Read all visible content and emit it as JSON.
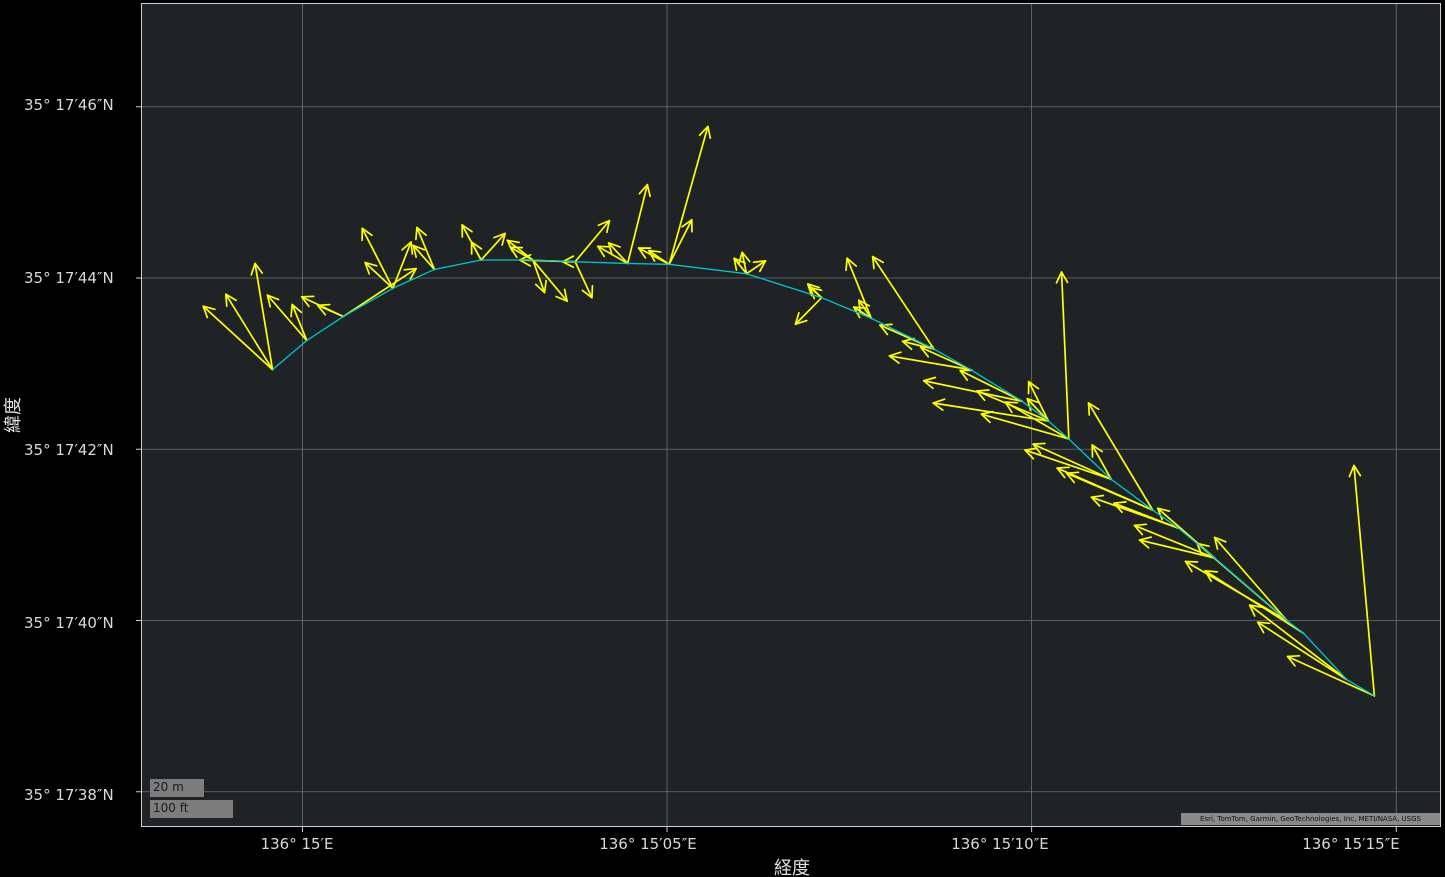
{
  "axes": {
    "xlabel": "経度",
    "ylabel": "緯度",
    "x_ticks": [
      "136° 15′E",
      "136° 15′05″E",
      "136° 15′10″E",
      "136° 15′15″E"
    ],
    "y_ticks": [
      "35° 17′46″N",
      "35° 17′44″N",
      "35° 17′42″N",
      "35° 17′40″N",
      "35° 17′38″N"
    ]
  },
  "scale_bar": {
    "metric": "20 m",
    "imperial": "100 ft"
  },
  "attribution": "Esri, TomTom, Garmin, GeoTechnologies, Inc, METI/NASA, USGS",
  "colors": {
    "map_background": "#1f2326",
    "grid": "#6f7275",
    "track": "#00c8d2",
    "vector": "#ffff00"
  },
  "chart_data": {
    "type": "vector-field-on-map",
    "x_unit": "longitude arc-seconds past 136° 15′E",
    "y_unit": "latitude arc-seconds past 35° 17′N",
    "xlim": [
      -2.2,
      15.6
    ],
    "ylim": [
      37.6,
      47.2
    ],
    "grid": true,
    "track": [
      [
        -0.41,
        42.93
      ],
      [
        0.06,
        43.27
      ],
      [
        0.56,
        43.55
      ],
      [
        1.24,
        43.88
      ],
      [
        1.81,
        44.1
      ],
      [
        2.45,
        44.21
      ],
      [
        3.16,
        44.21
      ],
      [
        3.74,
        44.19
      ],
      [
        4.46,
        44.17
      ],
      [
        5.03,
        44.16
      ],
      [
        6.09,
        44.05
      ],
      [
        7.12,
        43.77
      ],
      [
        7.8,
        43.53
      ],
      [
        8.66,
        43.17
      ],
      [
        9.16,
        42.93
      ],
      [
        9.87,
        42.56
      ],
      [
        10.23,
        42.33
      ],
      [
        10.51,
        42.12
      ],
      [
        11.09,
        41.65
      ],
      [
        11.66,
        41.29
      ],
      [
        12.01,
        41.08
      ],
      [
        12.51,
        40.73
      ],
      [
        13.5,
        40.0
      ],
      [
        13.73,
        39.85
      ],
      [
        14.32,
        39.31
      ],
      [
        14.7,
        39.12
      ]
    ],
    "vectors": [
      [
        -0.41,
        42.93,
        -1.36,
        43.67
      ],
      [
        -0.41,
        42.93,
        -1.05,
        43.81
      ],
      [
        -0.41,
        42.93,
        -0.65,
        44.17
      ],
      [
        0.06,
        43.27,
        -0.48,
        43.8
      ],
      [
        0.06,
        43.27,
        -0.14,
        43.69
      ],
      [
        0.56,
        43.55,
        -0.01,
        43.78
      ],
      [
        0.56,
        43.55,
        0.21,
        43.68
      ],
      [
        1.24,
        43.88,
        0.86,
        44.18
      ],
      [
        1.24,
        43.88,
        0.82,
        44.58
      ],
      [
        1.81,
        44.1,
        1.52,
        44.38
      ],
      [
        1.81,
        44.1,
        1.57,
        44.59
      ],
      [
        2.45,
        44.21,
        2.19,
        44.62
      ],
      [
        2.45,
        44.21,
        2.32,
        44.42
      ],
      [
        3.16,
        44.21,
        2.81,
        44.44
      ],
      [
        3.16,
        44.21,
        2.85,
        44.36
      ],
      [
        3.74,
        44.19,
        2.98,
        44.21
      ],
      [
        3.74,
        44.19,
        3.57,
        44.19
      ],
      [
        4.46,
        44.17,
        4.05,
        44.37
      ],
      [
        4.46,
        44.17,
        4.2,
        44.41
      ],
      [
        5.03,
        44.16,
        4.61,
        44.35
      ],
      [
        5.03,
        44.16,
        4.75,
        44.32
      ],
      [
        6.09,
        44.05,
        5.92,
        44.23
      ],
      [
        6.09,
        44.05,
        6.03,
        44.3
      ],
      [
        7.12,
        43.77,
        6.93,
        43.93
      ],
      [
        7.12,
        43.77,
        6.96,
        43.89
      ],
      [
        7.8,
        43.53,
        7.63,
        43.74
      ],
      [
        7.8,
        43.53,
        7.56,
        43.66
      ],
      [
        8.66,
        43.17,
        8.23,
        43.26
      ],
      [
        8.66,
        43.17,
        7.92,
        43.45
      ],
      [
        9.16,
        42.93,
        8.48,
        43.19
      ],
      [
        9.16,
        42.93,
        8.05,
        43.09
      ],
      [
        9.87,
        42.56,
        9.02,
        42.92
      ],
      [
        9.87,
        42.56,
        8.52,
        42.8
      ],
      [
        10.23,
        42.33,
        9.25,
        42.68
      ],
      [
        10.23,
        42.33,
        8.65,
        42.54
      ],
      [
        10.51,
        42.12,
        9.64,
        42.55
      ],
      [
        10.51,
        42.12,
        9.31,
        42.41
      ],
      [
        11.09,
        41.65,
        10.02,
        42.06
      ],
      [
        11.09,
        41.65,
        9.91,
        41.99
      ],
      [
        11.66,
        41.29,
        10.35,
        41.78
      ],
      [
        11.66,
        41.29,
        10.48,
        41.72
      ],
      [
        12.01,
        41.08,
        10.82,
        41.44
      ],
      [
        12.01,
        41.08,
        11.13,
        41.37
      ],
      [
        12.51,
        40.73,
        11.41,
        41.11
      ],
      [
        12.51,
        40.73,
        11.48,
        40.94
      ],
      [
        13.5,
        40.0,
        12.11,
        40.69
      ],
      [
        13.5,
        40.0,
        12.51,
        40.97
      ],
      [
        13.73,
        39.85,
        12.38,
        40.58
      ],
      [
        14.32,
        39.31,
        13.1,
        39.98
      ],
      [
        14.32,
        39.31,
        12.99,
        40.18
      ],
      [
        14.7,
        39.12,
        13.51,
        39.58
      ],
      [
        14.7,
        39.12,
        14.42,
        41.81
      ],
      [
        0.56,
        43.55,
        1.56,
        44.11
      ],
      [
        1.24,
        43.88,
        1.49,
        44.42
      ],
      [
        2.45,
        44.21,
        2.78,
        44.52
      ],
      [
        3.74,
        44.19,
        4.21,
        44.67
      ],
      [
        4.46,
        44.17,
        4.73,
        45.09
      ],
      [
        5.03,
        44.16,
        5.56,
        45.77
      ],
      [
        5.03,
        44.16,
        5.34,
        44.68
      ],
      [
        6.09,
        44.05,
        6.35,
        44.2
      ],
      [
        7.12,
        43.77,
        6.76,
        43.46
      ],
      [
        7.8,
        43.53,
        7.47,
        44.23
      ],
      [
        8.66,
        43.17,
        7.82,
        44.25
      ],
      [
        10.51,
        42.12,
        10.41,
        44.07
      ],
      [
        11.66,
        41.29,
        10.78,
        42.54
      ],
      [
        12.51,
        40.73,
        11.73,
        41.31
      ],
      [
        3.16,
        44.21,
        3.63,
        43.73
      ],
      [
        3.16,
        44.21,
        3.32,
        43.83
      ],
      [
        3.74,
        44.19,
        3.97,
        43.77
      ],
      [
        10.23,
        42.33,
        9.96,
        42.79
      ],
      [
        10.23,
        42.33,
        9.94,
        42.59
      ],
      [
        11.09,
        41.65,
        10.83,
        42.05
      ],
      [
        13.5,
        40.0,
        12.27,
        40.9
      ]
    ]
  }
}
